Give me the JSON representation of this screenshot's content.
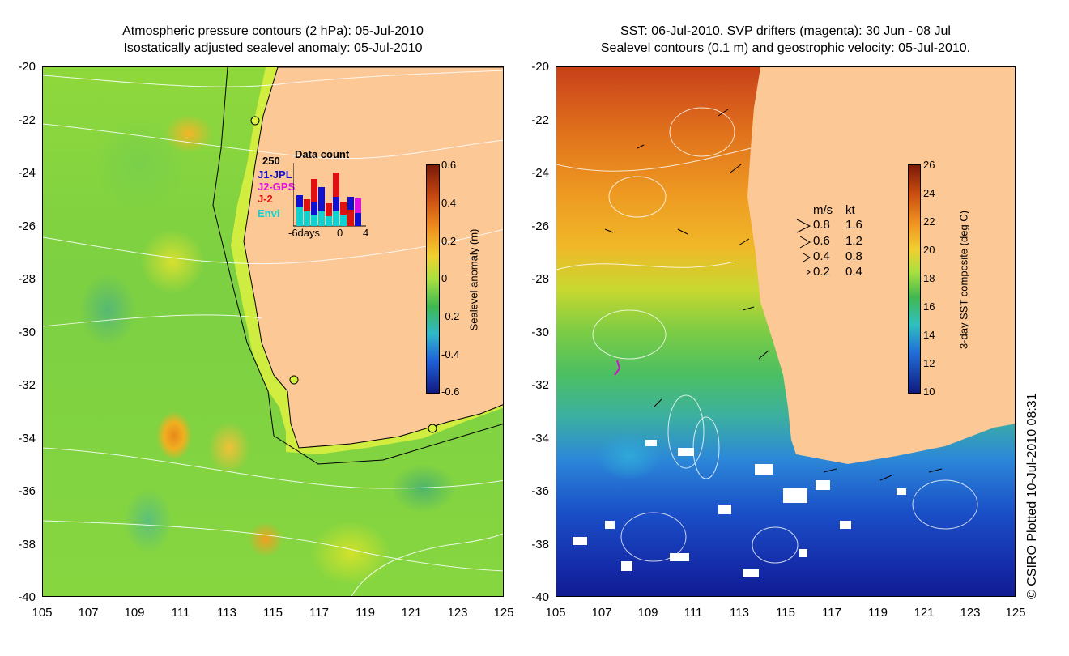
{
  "left_panel": {
    "title_line1": "Atmospheric pressure contours (2 hPa): 05-Jul-2010",
    "title_line2": "Isostatically adjusted sealevel anomaly: 05-Jul-2010",
    "y_ticks": [
      "-20",
      "-22",
      "-24",
      "-26",
      "-28",
      "-30",
      "-32",
      "-34",
      "-36",
      "-38",
      "-40"
    ],
    "x_ticks": [
      "105",
      "107",
      "109",
      "111",
      "113",
      "115",
      "117",
      "119",
      "121",
      "123",
      "125"
    ],
    "colorbar_label": "Sealevel anomaly (m)",
    "colorbar_ticks": [
      "0.6",
      "0.4",
      "0.2",
      "0",
      "-0.2",
      "-0.4",
      "-0.6"
    ],
    "inset": {
      "title": "Data count",
      "ymax_label": "250",
      "legend": [
        {
          "label": "J1-JPL",
          "color": "#1010d0"
        },
        {
          "label": "J2-GPS",
          "color": "#e010e0"
        },
        {
          "label": "J-2",
          "color": "#e01010"
        },
        {
          "label": "Envi",
          "color": "#10d0d0"
        }
      ],
      "x_labels": [
        "-6days",
        "0",
        "4"
      ]
    }
  },
  "right_panel": {
    "title_line1": "SST: 06-Jul-2010. SVP drifters (magenta): 30 Jun - 08 Jul",
    "title_line2": "Sealevel contours (0.1 m) and geostrophic velocity: 05-Jul-2010.",
    "y_ticks": [
      "-20",
      "-22",
      "-24",
      "-26",
      "-28",
      "-30",
      "-32",
      "-34",
      "-36",
      "-38",
      "-40"
    ],
    "x_ticks": [
      "105",
      "107",
      "109",
      "111",
      "113",
      "115",
      "117",
      "119",
      "121",
      "123",
      "125"
    ],
    "colorbar_label": "3-day SST composite (deg C)",
    "colorbar_ticks": [
      "26",
      "24",
      "22",
      "20",
      "18",
      "16",
      "14",
      "12",
      "10"
    ],
    "velocity_legend": {
      "header_ms": "m/s",
      "header_kt": "kt",
      "rows": [
        {
          "ms": "0.8",
          "kt": "1.6"
        },
        {
          "ms": "0.6",
          "kt": "1.2"
        },
        {
          "ms": "0.4",
          "kt": "0.8"
        },
        {
          "ms": "0.2",
          "kt": "0.4"
        }
      ]
    }
  },
  "credit": "© CSIRO Plotted 10-Jul-2010 08:31",
  "colors": {
    "land": "#fcc896",
    "coast_band": "#d8f040"
  }
}
